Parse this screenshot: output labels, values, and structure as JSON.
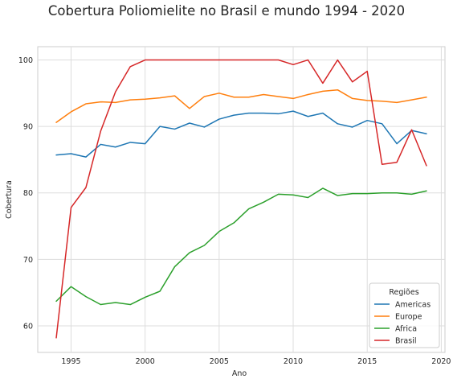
{
  "chart_data": {
    "type": "line",
    "title": "Cobertura Poliomielite no Brasil e mundo 1994 - 2020",
    "xlabel": "Ano",
    "ylabel": "Cobertura",
    "xlim": [
      1992.75,
      2020.25
    ],
    "ylim": [
      56,
      102
    ],
    "xticks": [
      1995,
      2000,
      2005,
      2010,
      2015,
      2020
    ],
    "yticks": [
      60,
      70,
      80,
      90,
      100
    ],
    "grid": true,
    "legend": {
      "title": "Regiões",
      "position": "bottom-right"
    },
    "x": [
      1994,
      1995,
      1996,
      1997,
      1998,
      1999,
      2000,
      2001,
      2002,
      2003,
      2004,
      2005,
      2006,
      2007,
      2008,
      2009,
      2010,
      2011,
      2012,
      2013,
      2014,
      2015,
      2016,
      2017,
      2018,
      2019
    ],
    "series": [
      {
        "name": "Americas",
        "color": "#1f77b4",
        "values": [
          85.7,
          85.9,
          85.4,
          87.3,
          86.9,
          87.6,
          87.4,
          90.0,
          89.6,
          90.5,
          89.9,
          91.1,
          91.7,
          92.0,
          92.0,
          91.9,
          92.3,
          91.5,
          92.0,
          90.4,
          89.9,
          90.9,
          90.4,
          87.4,
          89.4,
          88.9
        ]
      },
      {
        "name": "Europe",
        "color": "#ff7f0e",
        "values": [
          90.6,
          92.2,
          93.4,
          93.7,
          93.6,
          94.0,
          94.1,
          94.3,
          94.6,
          92.7,
          94.5,
          95.0,
          94.4,
          94.4,
          94.8,
          94.5,
          94.2,
          94.8,
          95.3,
          95.5,
          94.2,
          93.9,
          93.8,
          93.6,
          94.0,
          94.4
        ]
      },
      {
        "name": "Africa",
        "color": "#2ca02c",
        "values": [
          63.7,
          65.9,
          64.4,
          63.2,
          63.5,
          63.2,
          64.3,
          65.2,
          68.9,
          71.0,
          72.1,
          74.2,
          75.5,
          77.6,
          78.6,
          79.8,
          79.7,
          79.3,
          80.7,
          79.6,
          79.9,
          79.9,
          80.0,
          80.0,
          79.8,
          80.3
        ]
      },
      {
        "name": "Brasil",
        "color": "#d62728",
        "values": [
          58.2,
          77.8,
          80.8,
          89.3,
          95.2,
          99.0,
          100,
          100,
          100,
          100,
          100,
          100,
          100,
          100,
          100,
          100,
          99.3,
          100,
          96.5,
          100,
          96.7,
          98.3,
          84.3,
          84.6,
          89.5,
          84.1
        ]
      }
    ]
  }
}
